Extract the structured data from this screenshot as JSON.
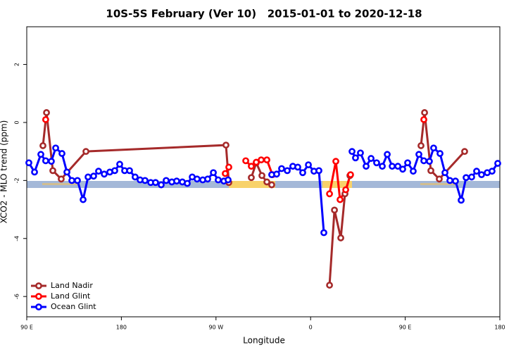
{
  "chart_data": {
    "type": "line",
    "title": "10S-5S February (Ver 10)   2015-01-01 to 2020-12-18",
    "xlabel": "Longitude",
    "ylabel": "XCO2 - MLO trend (ppm)",
    "xlim": [
      90,
      540
    ],
    "ylim": [
      -6.7,
      3.3
    ],
    "xticks": [
      {
        "value": 90,
        "label": "90 E"
      },
      {
        "value": 180,
        "label": "180"
      },
      {
        "value": 270,
        "label": "90 W"
      },
      {
        "value": 360,
        "label": "0"
      },
      {
        "value": 450,
        "label": "90 E"
      },
      {
        "value": 540,
        "label": "180"
      }
    ],
    "yticks": [
      -6,
      -4,
      -2,
      0,
      2
    ],
    "legend": "lower left",
    "series": [
      {
        "name": "Land Nadir",
        "color": "#a52a2a",
        "x": [
          105.4,
          108.8,
          114.8,
          122.8,
          146.3,
          279.5,
          282.2,
          null,
          303.6,
          308.3,
          313.7,
          318.4,
          323,
          null,
          378,
          382.7,
          388.7,
          392.7,
          397.4,
          null,
          465,
          468.4,
          474.4,
          482.4,
          506.5
        ],
        "values": [
          -0.8,
          0.34,
          -1.66,
          -1.95,
          -1.0,
          -0.78,
          -2.07,
          null,
          -1.9,
          -1.39,
          -1.83,
          -2.05,
          -2.15,
          null,
          -5.61,
          -3.02,
          -3.98,
          -2.46,
          -1.83,
          null,
          -0.8,
          0.34,
          -1.66,
          -1.95,
          -1.0
        ]
      },
      {
        "name": "Land Glint",
        "color": "#ff0000",
        "x": [
          108,
          null,
          278.8,
          282.2,
          null,
          298.3,
          303.6,
          308.3,
          313,
          318.4,
          323.7,
          null,
          378,
          384,
          388,
          393.4,
          398,
          null,
          467.7
        ],
        "values": [
          0.1,
          null,
          -1.76,
          -1.54,
          null,
          -1.32,
          -1.51,
          -1.37,
          -1.29,
          -1.29,
          -1.8,
          null,
          -2.46,
          -1.34,
          -2.66,
          -2.32,
          -1.8,
          null,
          0.1
        ]
      },
      {
        "name": "Ocean Glint",
        "color": "#0000ff",
        "x": [
          92,
          97.4,
          103.4,
          108,
          113.4,
          117.5,
          123.5,
          128.2,
          132.9,
          138.2,
          143.6,
          148.3,
          153.6,
          158.3,
          163.7,
          169,
          173.7,
          178.4,
          183.1,
          187.8,
          193.1,
          197.8,
          202.5,
          207.9,
          212.5,
          217.9,
          222.6,
          228,
          232.6,
          238,
          242.7,
          247.4,
          252,
          257.4,
          262.1,
          267.5,
          272.1,
          277.5,
          281.5,
          null,
          323,
          327.7,
          332.4,
          337.8,
          343.1,
          347.8,
          352.5,
          357.9,
          363.2,
          367.9,
          372.6,
          null,
          399.4,
          402.7,
          407.4,
          412.8,
          417.5,
          422.8,
          428.2,
          432.9,
          437.6,
          443,
          447.6,
          452.3,
          457.6,
          463,
          467.7,
          473,
          477,
          483.1,
          487.8,
          492.5,
          497.8,
          503.2,
          507.9,
          513.2,
          517.9,
          522.6,
          528,
          532.6,
          538
        ],
        "values": [
          -1.39,
          -1.71,
          -1.1,
          -1.32,
          -1.34,
          -0.88,
          -1.07,
          -1.71,
          -2.0,
          -2.0,
          -2.66,
          -1.88,
          -1.85,
          -1.68,
          -1.78,
          -1.71,
          -1.66,
          -1.44,
          -1.66,
          -1.66,
          -1.88,
          -1.98,
          -2.0,
          -2.07,
          -2.07,
          -2.15,
          -2.0,
          -2.05,
          -2.02,
          -2.05,
          -2.1,
          -1.88,
          -1.95,
          -1.98,
          -1.95,
          -1.73,
          -1.98,
          -2.02,
          -1.98,
          null,
          -1.8,
          -1.78,
          -1.59,
          -1.66,
          -1.51,
          -1.54,
          -1.73,
          -1.46,
          -1.68,
          -1.66,
          -3.8,
          null,
          -1.0,
          -1.22,
          -1.05,
          -1.51,
          -1.24,
          -1.39,
          -1.51,
          -1.1,
          -1.51,
          -1.51,
          -1.61,
          -1.39,
          -1.68,
          -1.1,
          -1.32,
          -1.34,
          -0.88,
          -1.07,
          -1.73,
          -2.0,
          -2.02,
          -2.68,
          -1.9,
          -1.88,
          -1.68,
          -1.8,
          -1.73,
          -1.68,
          -1.41
        ]
      }
    ]
  }
}
